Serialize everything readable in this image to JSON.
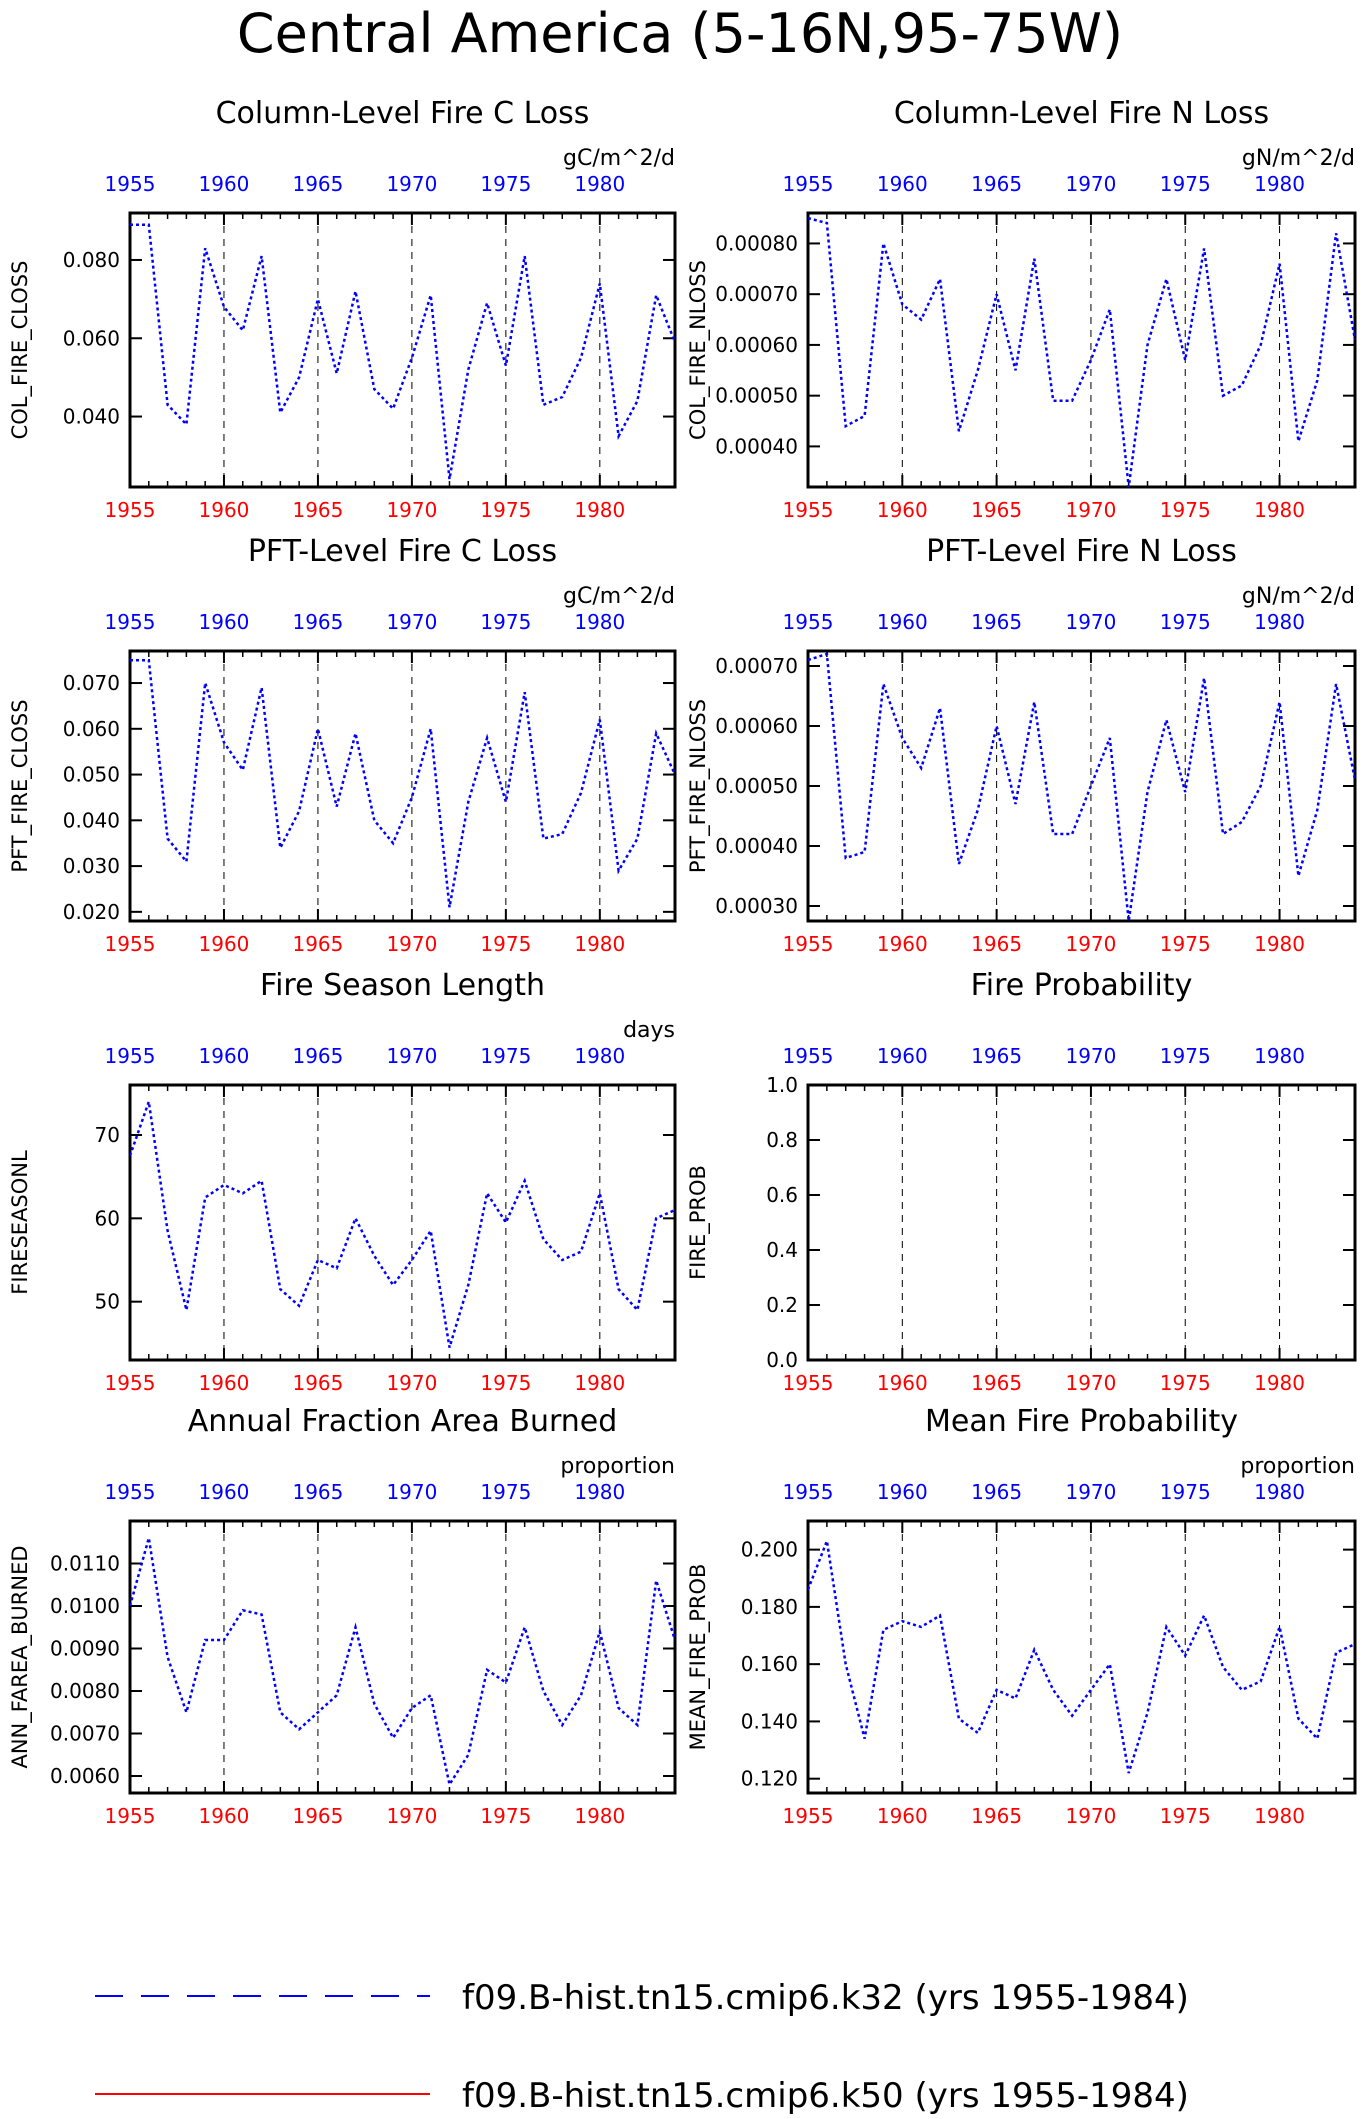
{
  "page": {
    "title": "Central America (5-16N,95-75W)"
  },
  "colors": {
    "series_blue": "#0000ff",
    "series_red": "#ff0000",
    "top_axis_labels": "#0000ff",
    "bottom_axis_labels": "#ff0000",
    "axes": "#000000"
  },
  "legend": {
    "entries": [
      {
        "label": "f09.B-hist.tn15.cmip6.k32 (yrs 1955-1984)",
        "color": "#0000ff",
        "style": "dashed"
      },
      {
        "label": "f09.B-hist.tn15.cmip6.k50 (yrs 1955-1984)",
        "color": "#ff0000",
        "style": "solid"
      }
    ]
  },
  "chart_data": [
    {
      "id": "col_fire_closs",
      "type": "line",
      "title": "Column-Level Fire C Loss",
      "units": "gC/m^2/d",
      "ylabel": "COL_FIRE_CLOSS",
      "xlim": [
        1955,
        1984
      ],
      "ylim": [
        0.022,
        0.092
      ],
      "yticks": [
        0.04,
        0.06,
        0.08
      ],
      "ytick_labels": [
        "0.040",
        "0.060",
        "0.080"
      ],
      "xticks": [
        1955,
        1960,
        1965,
        1970,
        1975,
        1980
      ],
      "grid": "dashed verticals at 1960,1965,1970,1975,1980",
      "series": [
        {
          "x": [
            1955,
            1956,
            1957,
            1958,
            1959,
            1960,
            1961,
            1962,
            1963,
            1964,
            1965,
            1966,
            1967,
            1968,
            1969,
            1970,
            1971,
            1972,
            1973,
            1974,
            1975,
            1976,
            1977,
            1978,
            1979,
            1980,
            1981,
            1982,
            1983,
            1984
          ],
          "values": [
            0.089,
            0.089,
            0.043,
            0.038,
            0.083,
            0.068,
            0.062,
            0.081,
            0.041,
            0.05,
            0.07,
            0.051,
            0.072,
            0.047,
            0.042,
            0.055,
            0.071,
            0.024,
            0.052,
            0.069,
            0.053,
            0.081,
            0.043,
            0.045,
            0.055,
            0.074,
            0.035,
            0.044,
            0.071,
            0.059
          ]
        }
      ]
    },
    {
      "id": "col_fire_nloss",
      "type": "line",
      "title": "Column-Level Fire N Loss",
      "units": "gN/m^2/d",
      "ylabel": "COL_FIRE_NLOSS",
      "xlim": [
        1955,
        1984
      ],
      "ylim": [
        0.00032,
        0.00086
      ],
      "yticks": [
        0.0004,
        0.0005,
        0.0006,
        0.0007,
        0.0008
      ],
      "ytick_labels": [
        "0.00040",
        "0.00050",
        "0.00060",
        "0.00070",
        "0.00080"
      ],
      "xticks": [
        1955,
        1960,
        1965,
        1970,
        1975,
        1980
      ],
      "grid": "dashed verticals at 1960,1965,1970,1975,1980",
      "series": [
        {
          "x": [
            1955,
            1956,
            1957,
            1958,
            1959,
            1960,
            1961,
            1962,
            1963,
            1964,
            1965,
            1966,
            1967,
            1968,
            1969,
            1970,
            1971,
            1972,
            1973,
            1974,
            1975,
            1976,
            1977,
            1978,
            1979,
            1980,
            1981,
            1982,
            1983,
            1984
          ],
          "values": [
            0.00085,
            0.00084,
            0.00044,
            0.00046,
            0.0008,
            0.00068,
            0.00065,
            0.00073,
            0.00043,
            0.00055,
            0.0007,
            0.00055,
            0.00077,
            0.00049,
            0.00049,
            0.00057,
            0.00067,
            0.00032,
            0.0006,
            0.00073,
            0.00057,
            0.00079,
            0.0005,
            0.00052,
            0.0006,
            0.00076,
            0.00041,
            0.00053,
            0.00082,
            0.00061
          ]
        }
      ]
    },
    {
      "id": "pft_fire_closs",
      "type": "line",
      "title": "PFT-Level Fire C Loss",
      "units": "gC/m^2/d",
      "ylabel": "PFT_FIRE_CLOSS",
      "xlim": [
        1955,
        1984
      ],
      "ylim": [
        0.018,
        0.077
      ],
      "yticks": [
        0.02,
        0.03,
        0.04,
        0.05,
        0.06,
        0.07
      ],
      "ytick_labels": [
        "0.020",
        "0.030",
        "0.040",
        "0.050",
        "0.060",
        "0.070"
      ],
      "xticks": [
        1955,
        1960,
        1965,
        1970,
        1975,
        1980
      ],
      "grid": "dashed verticals at 1960,1965,1970,1975,1980",
      "series": [
        {
          "x": [
            1955,
            1956,
            1957,
            1958,
            1959,
            1960,
            1961,
            1962,
            1963,
            1964,
            1965,
            1966,
            1967,
            1968,
            1969,
            1970,
            1971,
            1972,
            1973,
            1974,
            1975,
            1976,
            1977,
            1978,
            1979,
            1980,
            1981,
            1982,
            1983,
            1984
          ],
          "values": [
            0.075,
            0.075,
            0.036,
            0.031,
            0.07,
            0.057,
            0.051,
            0.069,
            0.034,
            0.042,
            0.06,
            0.043,
            0.059,
            0.04,
            0.035,
            0.045,
            0.06,
            0.021,
            0.044,
            0.058,
            0.044,
            0.068,
            0.036,
            0.037,
            0.046,
            0.062,
            0.029,
            0.036,
            0.059,
            0.05
          ]
        }
      ]
    },
    {
      "id": "pft_fire_nloss",
      "type": "line",
      "title": "PFT-Level Fire N Loss",
      "units": "gN/m^2/d",
      "ylabel": "PFT_FIRE_NLOSS",
      "xlim": [
        1955,
        1984
      ],
      "ylim": [
        0.000275,
        0.000725
      ],
      "yticks": [
        0.0003,
        0.0004,
        0.0005,
        0.0006,
        0.0007
      ],
      "ytick_labels": [
        "0.00030",
        "0.00040",
        "0.00050",
        "0.00060",
        "0.00070"
      ],
      "xticks": [
        1955,
        1960,
        1965,
        1970,
        1975,
        1980
      ],
      "grid": "dashed verticals at 1960,1965,1970,1975,1980",
      "series": [
        {
          "x": [
            1955,
            1956,
            1957,
            1958,
            1959,
            1960,
            1961,
            1962,
            1963,
            1964,
            1965,
            1966,
            1967,
            1968,
            1969,
            1970,
            1971,
            1972,
            1973,
            1974,
            1975,
            1976,
            1977,
            1978,
            1979,
            1980,
            1981,
            1982,
            1983,
            1984
          ],
          "values": [
            0.00071,
            0.00072,
            0.00038,
            0.00039,
            0.00067,
            0.00058,
            0.00053,
            0.00063,
            0.00037,
            0.00046,
            0.0006,
            0.00047,
            0.00064,
            0.00042,
            0.00042,
            0.0005,
            0.00058,
            0.000275,
            0.00049,
            0.00061,
            0.00049,
            0.00068,
            0.00042,
            0.00044,
            0.0005,
            0.00064,
            0.00035,
            0.00046,
            0.00067,
            0.00051
          ]
        }
      ]
    },
    {
      "id": "fireseasonl",
      "type": "line",
      "title": "Fire Season Length",
      "units": "days",
      "ylabel": "FIRESEASONL",
      "xlim": [
        1955,
        1984
      ],
      "ylim": [
        43,
        76
      ],
      "yticks": [
        50,
        60,
        70
      ],
      "ytick_labels": [
        "50",
        "60",
        "70"
      ],
      "xticks": [
        1955,
        1960,
        1965,
        1970,
        1975,
        1980
      ],
      "grid": "dashed verticals at 1960,1965,1970,1975,1980",
      "series": [
        {
          "x": [
            1955,
            1956,
            1957,
            1958,
            1959,
            1960,
            1961,
            1962,
            1963,
            1964,
            1965,
            1966,
            1967,
            1968,
            1969,
            1970,
            1971,
            1972,
            1973,
            1974,
            1975,
            1976,
            1977,
            1978,
            1979,
            1980,
            1981,
            1982,
            1983,
            1984
          ],
          "values": [
            67.5,
            74,
            58.5,
            49,
            62.5,
            64,
            63,
            64.5,
            51.5,
            49.5,
            55,
            54,
            60,
            55.5,
            52,
            55,
            58.5,
            44.5,
            52,
            63,
            59.5,
            64.5,
            57.5,
            55,
            56,
            63,
            51.5,
            49,
            60,
            61
          ]
        }
      ]
    },
    {
      "id": "fire_prob",
      "type": "line",
      "title": "Fire Probability",
      "units": "",
      "ylabel": "FIRE_PROB",
      "xlim": [
        1955,
        1984
      ],
      "ylim": [
        0.0,
        1.0
      ],
      "yticks": [
        0.0,
        0.2,
        0.4,
        0.6,
        0.8,
        1.0
      ],
      "ytick_labels": [
        "0.0",
        "0.2",
        "0.4",
        "0.6",
        "0.8",
        "1.0"
      ],
      "xticks": [
        1955,
        1960,
        1965,
        1970,
        1975,
        1980
      ],
      "grid": "dashed verticals at 1960,1965,1970,1975,1980",
      "series": []
    },
    {
      "id": "ann_farea_burned",
      "type": "line",
      "title": "Annual Fraction Area Burned",
      "units": "proportion",
      "ylabel": "ANN_FAREA_BURNED",
      "xlim": [
        1955,
        1984
      ],
      "ylim": [
        0.0056,
        0.012
      ],
      "yticks": [
        0.006,
        0.007,
        0.008,
        0.009,
        0.01,
        0.011
      ],
      "ytick_labels": [
        "0.0060",
        "0.0070",
        "0.0080",
        "0.0090",
        "0.0100",
        "0.0110"
      ],
      "xticks": [
        1955,
        1960,
        1965,
        1970,
        1975,
        1980
      ],
      "grid": "dashed verticals at 1960,1965,1970,1975,1980",
      "series": [
        {
          "x": [
            1955,
            1956,
            1957,
            1958,
            1959,
            1960,
            1961,
            1962,
            1963,
            1964,
            1965,
            1966,
            1967,
            1968,
            1969,
            1970,
            1971,
            1972,
            1973,
            1974,
            1975,
            1976,
            1977,
            1978,
            1979,
            1980,
            1981,
            1982,
            1983,
            1984
          ],
          "values": [
            0.01,
            0.0116,
            0.0088,
            0.0075,
            0.0092,
            0.0092,
            0.0099,
            0.0098,
            0.0075,
            0.0071,
            0.0075,
            0.0079,
            0.0095,
            0.0077,
            0.0069,
            0.0076,
            0.0079,
            0.0058,
            0.0065,
            0.0085,
            0.0082,
            0.0095,
            0.008,
            0.0072,
            0.0079,
            0.0094,
            0.0076,
            0.0072,
            0.0106,
            0.0092
          ]
        }
      ]
    },
    {
      "id": "mean_fire_prob",
      "type": "line",
      "title": "Mean Fire Probability",
      "units": "proportion",
      "ylabel": "MEAN_FIRE_PROB",
      "xlim": [
        1955,
        1984
      ],
      "ylim": [
        0.115,
        0.21
      ],
      "yticks": [
        0.12,
        0.14,
        0.16,
        0.18,
        0.2
      ],
      "ytick_labels": [
        "0.120",
        "0.140",
        "0.160",
        "0.180",
        "0.200"
      ],
      "xticks": [
        1955,
        1960,
        1965,
        1970,
        1975,
        1980
      ],
      "grid": "dashed verticals at 1960,1965,1970,1975,1980",
      "series": [
        {
          "x": [
            1955,
            1956,
            1957,
            1958,
            1959,
            1960,
            1961,
            1962,
            1963,
            1964,
            1965,
            1966,
            1967,
            1968,
            1969,
            1970,
            1971,
            1972,
            1973,
            1974,
            1975,
            1976,
            1977,
            1978,
            1979,
            1980,
            1981,
            1982,
            1983,
            1984
          ],
          "values": [
            0.186,
            0.203,
            0.16,
            0.134,
            0.172,
            0.175,
            0.173,
            0.177,
            0.141,
            0.136,
            0.151,
            0.148,
            0.165,
            0.151,
            0.142,
            0.151,
            0.16,
            0.122,
            0.143,
            0.173,
            0.163,
            0.177,
            0.159,
            0.151,
            0.154,
            0.173,
            0.141,
            0.134,
            0.164,
            0.167
          ]
        }
      ]
    }
  ]
}
